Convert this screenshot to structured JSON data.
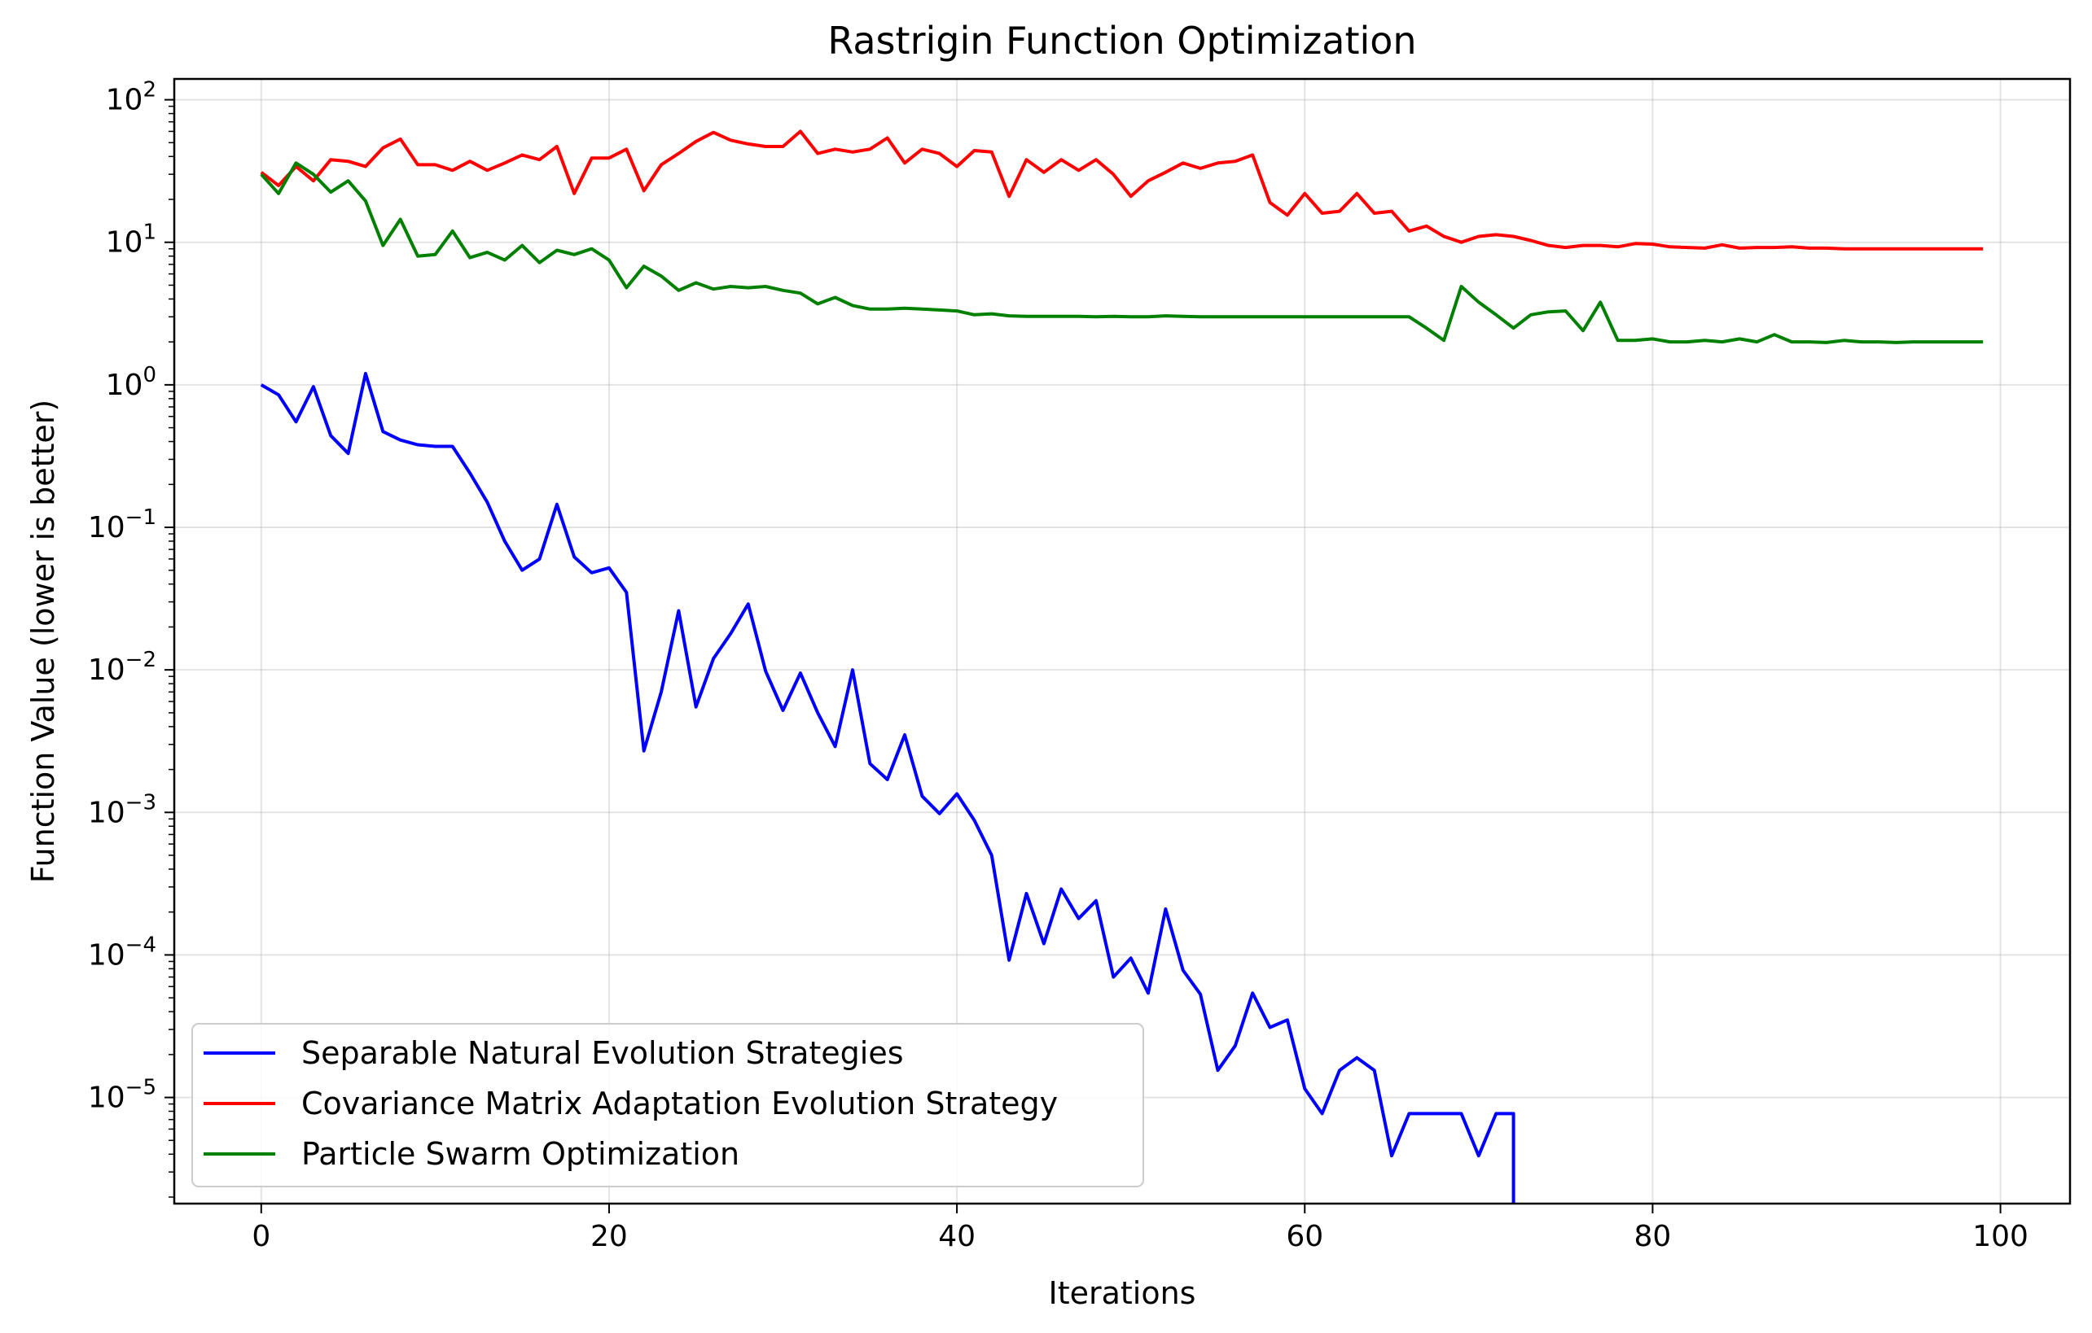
{
  "chart_data": {
    "type": "line",
    "title": "Rastrigin Function Optimization",
    "xlabel": "Iterations",
    "ylabel": "Function Value (lower is better)",
    "xlim": [
      -5,
      104
    ],
    "ylim": [
      1.8e-06,
      140
    ],
    "yscale": "log",
    "xticks": [
      0,
      20,
      40,
      60,
      80,
      100
    ],
    "yticks": [
      {
        "value": 100,
        "base": "10",
        "exp": "2"
      },
      {
        "value": 10,
        "base": "10",
        "exp": "1"
      },
      {
        "value": 1,
        "base": "10",
        "exp": "0"
      },
      {
        "value": 0.1,
        "base": "10",
        "exp": "−1"
      },
      {
        "value": 0.01,
        "base": "10",
        "exp": "−2"
      },
      {
        "value": 0.001,
        "base": "10",
        "exp": "−3"
      },
      {
        "value": 0.0001,
        "base": "10",
        "exp": "−4"
      },
      {
        "value": 1e-05,
        "base": "10",
        "exp": "−5"
      }
    ],
    "grid": true,
    "legend_position": "lower-left",
    "series": [
      {
        "name": "Separable Natural Evolution Strategies",
        "color": "#0000ff",
        "x": [
          0,
          1,
          2,
          3,
          4,
          5,
          6,
          7,
          8,
          9,
          10,
          11,
          12,
          13,
          14,
          15,
          16,
          17,
          18,
          19,
          20,
          21,
          22,
          23,
          24,
          25,
          26,
          27,
          28,
          29,
          30,
          31,
          32,
          33,
          34,
          35,
          36,
          37,
          38,
          39,
          40,
          41,
          42,
          43,
          44,
          45,
          46,
          47,
          48,
          49,
          50,
          51,
          52,
          53,
          54,
          55,
          56,
          57,
          58,
          59,
          60,
          61,
          62,
          63,
          64,
          65,
          66,
          67,
          68,
          69,
          70,
          71,
          72,
          72
        ],
        "values": [
          1.0,
          0.85,
          0.55,
          0.97,
          0.44,
          0.33,
          1.2,
          0.47,
          0.41,
          0.38,
          0.37,
          0.37,
          0.24,
          0.15,
          0.08,
          0.05,
          0.06,
          0.145,
          0.062,
          0.048,
          0.052,
          0.035,
          0.0027,
          0.007,
          0.026,
          0.0055,
          0.012,
          0.018,
          0.029,
          0.0098,
          0.0052,
          0.0095,
          0.005,
          0.0029,
          0.01,
          0.0022,
          0.0017,
          0.0035,
          0.0013,
          0.00098,
          0.00135,
          0.00088,
          0.0005,
          9.2e-05,
          0.00027,
          0.00012,
          0.00029,
          0.00018,
          0.00024,
          7e-05,
          9.5e-05,
          5.4e-05,
          0.00021,
          7.8e-05,
          5.3e-05,
          1.55e-05,
          2.3e-05,
          5.4e-05,
          3.1e-05,
          3.5e-05,
          1.15e-05,
          7.7e-06,
          1.55e-05,
          1.9e-05,
          1.55e-05,
          3.9e-06,
          7.7e-06,
          7.7e-06,
          7.7e-06,
          7.7e-06,
          3.9e-06,
          7.7e-06,
          7.7e-06,
          1.5e-06
        ]
      },
      {
        "name": "Covariance Matrix Adaptation Evolution Strategy",
        "color": "#ff0000",
        "x": [
          0,
          1,
          2,
          3,
          4,
          5,
          6,
          7,
          8,
          9,
          10,
          11,
          12,
          13,
          14,
          15,
          16,
          17,
          18,
          19,
          20,
          21,
          22,
          23,
          24,
          25,
          26,
          27,
          28,
          29,
          30,
          31,
          32,
          33,
          34,
          35,
          36,
          37,
          38,
          39,
          40,
          41,
          42,
          43,
          44,
          45,
          46,
          47,
          48,
          49,
          50,
          51,
          52,
          53,
          54,
          55,
          56,
          57,
          58,
          59,
          60,
          61,
          62,
          63,
          64,
          65,
          66,
          67,
          68,
          69,
          70,
          71,
          72,
          73,
          74,
          75,
          76,
          77,
          78,
          79,
          80,
          81,
          82,
          83,
          84,
          85,
          86,
          87,
          88,
          89,
          90,
          91,
          92,
          93,
          94,
          95,
          96,
          97,
          98,
          99
        ],
        "values": [
          31,
          25,
          34,
          27,
          38,
          37,
          34,
          46,
          53,
          35,
          35,
          32,
          37,
          32,
          36,
          41,
          38,
          47,
          22,
          39,
          39,
          45,
          23,
          35,
          42,
          51,
          59,
          52,
          49,
          47,
          47,
          60,
          42,
          45,
          43,
          45,
          54,
          36,
          45,
          42,
          34,
          44,
          43,
          21,
          38,
          31,
          38,
          32,
          38,
          30,
          21,
          27,
          31,
          36,
          33,
          36,
          37,
          41,
          19,
          15.5,
          22,
          16,
          16.5,
          22,
          16,
          16.5,
          12,
          13,
          11,
          10,
          11,
          11.3,
          11,
          10.3,
          9.5,
          9.2,
          9.5,
          9.5,
          9.3,
          9.8,
          9.7,
          9.3,
          9.2,
          9.1,
          9.6,
          9.1,
          9.2,
          9.2,
          9.3,
          9.1,
          9.1,
          9.0,
          9.0,
          9.0,
          9.0,
          9.0,
          9.0,
          9.0,
          9.0,
          9.0
        ]
      },
      {
        "name": "Particle Swarm Optimization",
        "color": "#008000",
        "x": [
          0,
          1,
          2,
          3,
          4,
          5,
          6,
          7,
          8,
          9,
          10,
          11,
          12,
          13,
          14,
          15,
          16,
          17,
          18,
          19,
          20,
          21,
          22,
          23,
          24,
          25,
          26,
          27,
          28,
          29,
          30,
          31,
          32,
          33,
          34,
          35,
          36,
          37,
          38,
          39,
          40,
          41,
          42,
          43,
          44,
          45,
          46,
          47,
          48,
          49,
          50,
          51,
          52,
          53,
          54,
          55,
          56,
          57,
          58,
          59,
          60,
          61,
          62,
          63,
          64,
          65,
          66,
          67,
          68,
          69,
          70,
          71,
          72,
          73,
          74,
          75,
          76,
          77,
          78,
          79,
          80,
          81,
          82,
          83,
          84,
          85,
          86,
          87,
          88,
          89,
          90,
          91,
          92,
          93,
          94,
          95,
          96,
          97,
          98,
          99
        ],
        "values": [
          30,
          22,
          36,
          30,
          22.5,
          27,
          19.5,
          9.5,
          14.5,
          8,
          8.2,
          12,
          7.8,
          8.5,
          7.5,
          9.5,
          7.2,
          8.8,
          8.2,
          9,
          7.5,
          4.8,
          6.8,
          5.8,
          4.6,
          5.2,
          4.7,
          4.9,
          4.8,
          4.9,
          4.6,
          4.4,
          3.7,
          4.1,
          3.6,
          3.4,
          3.4,
          3.45,
          3.4,
          3.35,
          3.3,
          3.1,
          3.15,
          3.05,
          3.02,
          3.02,
          3.02,
          3.02,
          3.0,
          3.02,
          3.0,
          3.0,
          3.05,
          3.02,
          3.0,
          3.0,
          3.0,
          3.0,
          3.0,
          3.0,
          3.0,
          3.0,
          3.0,
          3.0,
          3.0,
          3.0,
          3.0,
          2.5,
          2.05,
          4.9,
          3.8,
          3.1,
          2.5,
          3.1,
          3.25,
          3.3,
          2.4,
          3.8,
          2.05,
          2.05,
          2.1,
          2.0,
          2.0,
          2.05,
          2.0,
          2.1,
          2.0,
          2.25,
          2.0,
          2.0,
          1.98,
          2.05,
          2.0,
          2.0,
          1.98,
          2.0,
          2.0,
          2.0,
          2.0,
          2.0
        ]
      }
    ]
  }
}
